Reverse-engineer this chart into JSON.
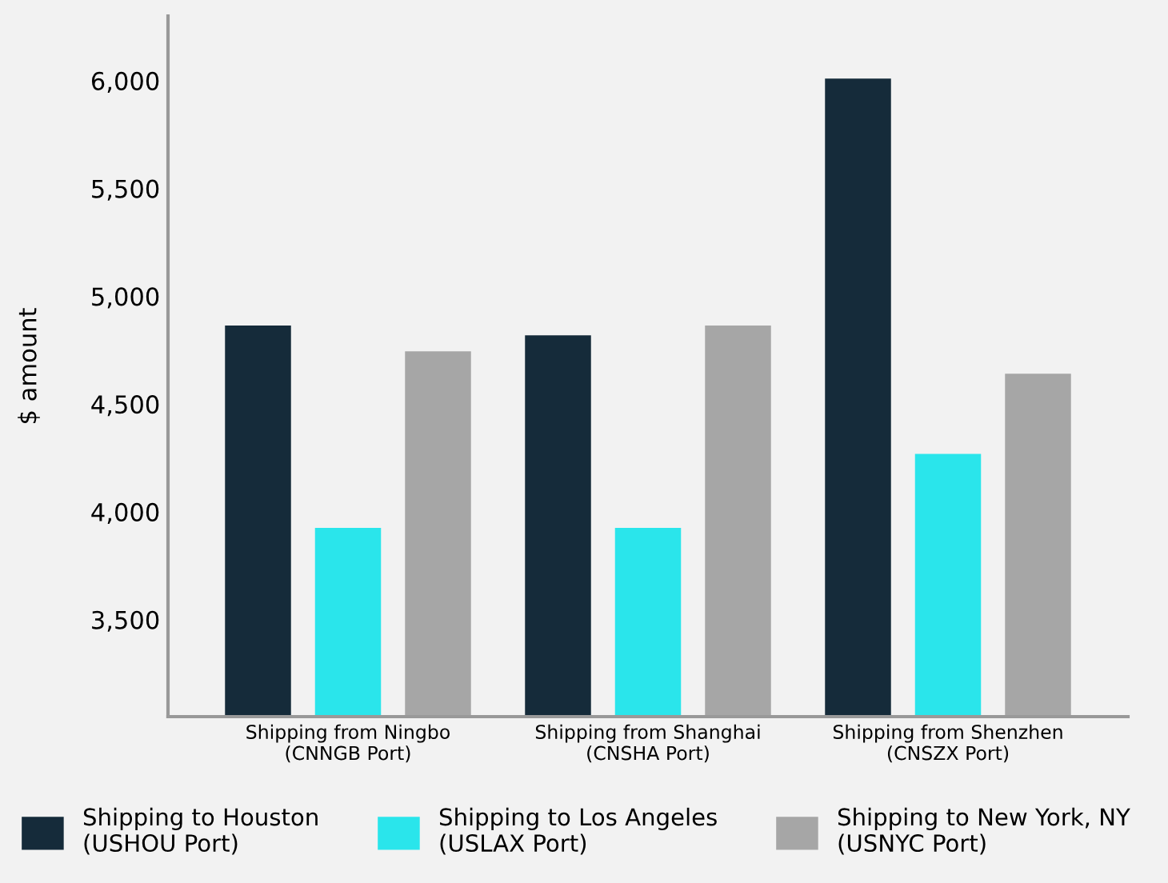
{
  "chart_data": {
    "type": "bar",
    "ylabel": "$ amount",
    "categories": [
      "Shipping from Ningbo\n(CNNGB Port)",
      "Shipping from Shanghai\n(CNSHA Port)",
      "Shipping from Shenzhen\n(CNSZX Port)"
    ],
    "series": [
      {
        "name": "Shipping to Houston\n(USHOU Port)",
        "color": "#152b3a",
        "values": [
          4864,
          4819,
          6010
        ]
      },
      {
        "name": "Shipping to Los Angeles\n(USLAX Port)",
        "color": "#2ae5eb",
        "values": [
          3926,
          3926,
          4269
        ]
      },
      {
        "name": "Shipping to New York, NY\n(USNYC Port)",
        "color": "#a6a6a6",
        "values": [
          4745,
          4864,
          4641
        ]
      }
    ],
    "ylim": [
      3050,
      6300
    ],
    "yticks": [
      {
        "value": 3500,
        "label": "3,500"
      },
      {
        "value": 4000,
        "label": "4,000"
      },
      {
        "value": 4500,
        "label": "4,500"
      },
      {
        "value": 5000,
        "label": "5,000"
      },
      {
        "value": 5500,
        "label": "5,500"
      },
      {
        "value": 6000,
        "label": "6,000"
      }
    ],
    "grid": false,
    "legend": "bottom"
  }
}
